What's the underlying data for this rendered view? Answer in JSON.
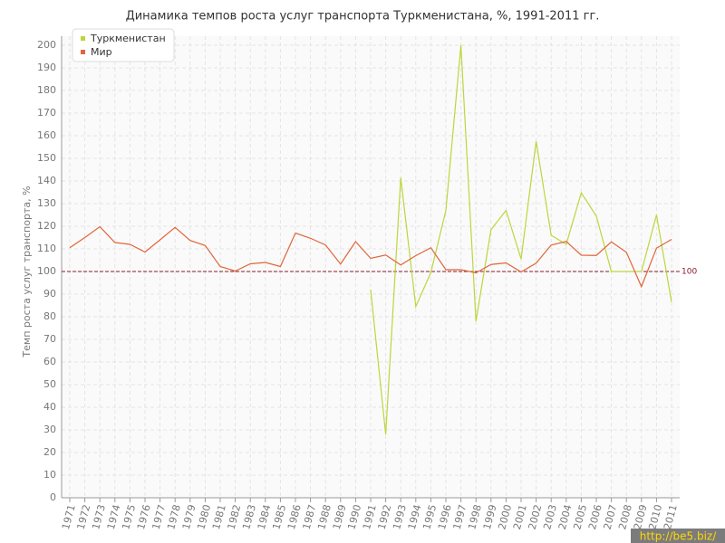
{
  "chart_data": {
    "type": "line",
    "title": "Динамика темпов роста услуг транспорта Туркменистана, %, 1991-2011 гг.",
    "y_label": "Темп роста услуг транспорта, %",
    "categories": [
      "1971",
      "1972",
      "1973",
      "1974",
      "1975",
      "1976",
      "1977",
      "1978",
      "1979",
      "1980",
      "1981",
      "1982",
      "1983",
      "1984",
      "1985",
      "1986",
      "1987",
      "1988",
      "1989",
      "1990",
      "1991",
      "1992",
      "1993",
      "1994",
      "1995",
      "1996",
      "1997",
      "1998",
      "1999",
      "2000",
      "2001",
      "2002",
      "2003",
      "2004",
      "2005",
      "2006",
      "2007",
      "2008",
      "2009",
      "2010",
      "2011"
    ],
    "series": [
      {
        "name": "Туркменистан",
        "color": "#bcd63c",
        "values": [
          null,
          null,
          null,
          null,
          null,
          null,
          null,
          null,
          null,
          null,
          null,
          null,
          null,
          null,
          null,
          null,
          null,
          null,
          null,
          null,
          92,
          28,
          141.5,
          84.5,
          99.5,
          127,
          200,
          78,
          118.5,
          127,
          105.5,
          157.5,
          116,
          112,
          134.8,
          124.5,
          100,
          100,
          100,
          125,
          86.5
        ]
      },
      {
        "name": "Мир",
        "color": "#e0663a",
        "values": [
          110.5,
          115,
          119.8,
          112.8,
          112,
          108.6,
          114,
          119.5,
          113.7,
          111.5,
          102.2,
          100.2,
          103.4,
          104,
          102.2,
          117,
          114.7,
          111.7,
          103.3,
          113.2,
          105.8,
          107.3,
          102.9,
          107,
          110.5,
          100.8,
          100.8,
          99.4,
          103.1,
          103.8,
          99.8,
          103.7,
          111.7,
          113.3,
          107.2,
          107.1,
          113.1,
          108.5,
          93.3,
          110.3,
          114.2
        ]
      }
    ],
    "ylim": [
      0,
      200
    ],
    "yticks": [
      0,
      10,
      20,
      30,
      40,
      50,
      60,
      70,
      80,
      90,
      100,
      110,
      120,
      130,
      140,
      150,
      160,
      170,
      180,
      190,
      200
    ],
    "grid": true,
    "reference_line": 100,
    "reference_color": "#8b1a2b",
    "legend": "top-left",
    "watermark": "http://be5.biz/"
  }
}
